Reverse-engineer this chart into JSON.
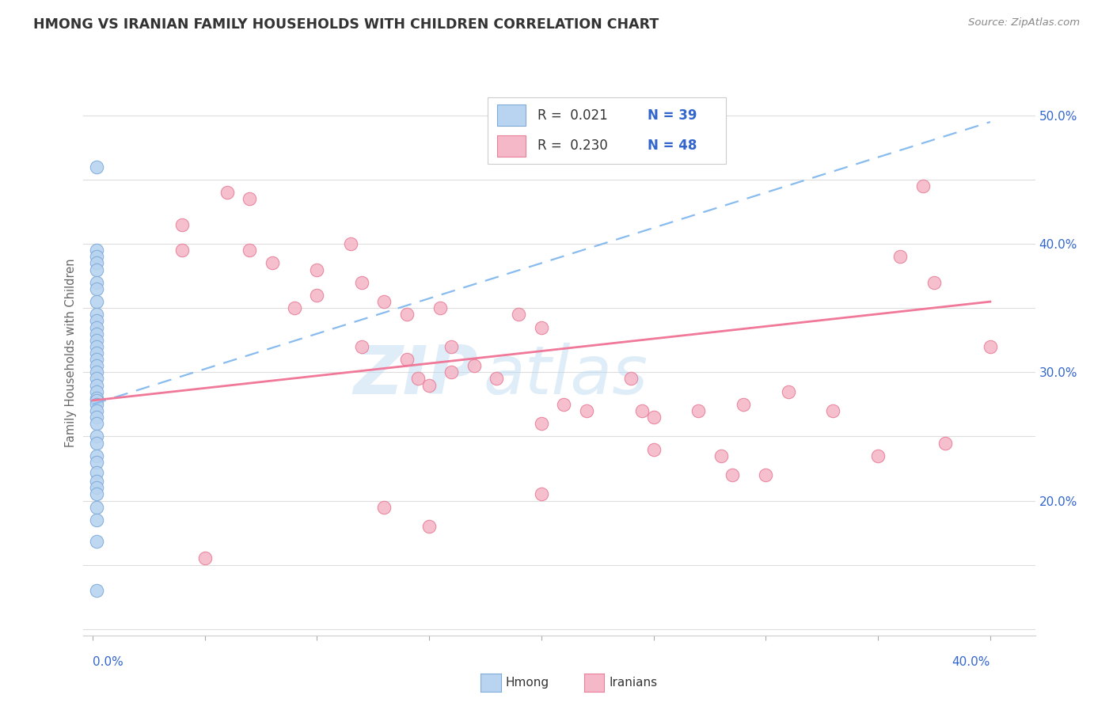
{
  "title": "HMONG VS IRANIAN FAMILY HOUSEHOLDS WITH CHILDREN CORRELATION CHART",
  "source": "Source: ZipAtlas.com",
  "ylabel": "Family Households with Children",
  "xlim": [
    -0.004,
    0.42
  ],
  "ylim": [
    0.095,
    0.535
  ],
  "background_color": "#ffffff",
  "grid_color": "#dddddd",
  "title_color": "#333333",
  "source_color": "#888888",
  "hmong_color": "#b8d4f0",
  "hmong_edge_color": "#80aad8",
  "iranian_color": "#f5b8c8",
  "iranian_edge_color": "#e8809a",
  "trend_hmong_color": "#88bbee",
  "trend_iranian_color": "#f07898",
  "legend_r_hmong": "0.021",
  "legend_n_hmong": "39",
  "legend_r_iranian": "0.230",
  "legend_n_iranian": "48",
  "legend_text_color": "#3366cc",
  "watermark_text": "ZIP",
  "watermark_text2": "atlas",
  "y_ticks": [
    0.1,
    0.15,
    0.2,
    0.25,
    0.3,
    0.35,
    0.4,
    0.45,
    0.5
  ],
  "y_tick_labels": [
    "",
    "",
    "20.0%",
    "",
    "30.0%",
    "",
    "40.0%",
    "",
    "50.0%"
  ],
  "x_bottom_ticks": [
    0.0,
    0.05,
    0.1,
    0.15,
    0.2,
    0.25,
    0.3,
    0.35,
    0.4
  ],
  "trend_hmong_x0": 0.0,
  "trend_hmong_y0": 0.275,
  "trend_hmong_x1": 0.4,
  "trend_hmong_y1": 0.495,
  "trend_iranian_x0": 0.0,
  "trend_iranian_y0": 0.278,
  "trend_iranian_x1": 0.4,
  "trend_iranian_y1": 0.355,
  "hmong_x": [
    0.002,
    0.002,
    0.002,
    0.002,
    0.002,
    0.002,
    0.002,
    0.002,
    0.002,
    0.002,
    0.002,
    0.002,
    0.002,
    0.002,
    0.002,
    0.002,
    0.002,
    0.002,
    0.002,
    0.002,
    0.002,
    0.002,
    0.002,
    0.002,
    0.002,
    0.002,
    0.002,
    0.002,
    0.002,
    0.002,
    0.002,
    0.002,
    0.002,
    0.002,
    0.002,
    0.002,
    0.002,
    0.002,
    0.002
  ],
  "hmong_y": [
    0.46,
    0.395,
    0.39,
    0.385,
    0.38,
    0.37,
    0.365,
    0.355,
    0.345,
    0.34,
    0.335,
    0.33,
    0.325,
    0.32,
    0.315,
    0.31,
    0.305,
    0.3,
    0.295,
    0.29,
    0.285,
    0.28,
    0.278,
    0.275,
    0.27,
    0.265,
    0.26,
    0.25,
    0.245,
    0.235,
    0.23,
    0.222,
    0.215,
    0.21,
    0.205,
    0.195,
    0.185,
    0.168,
    0.13
  ],
  "iranian_x": [
    0.04,
    0.04,
    0.06,
    0.07,
    0.07,
    0.08,
    0.09,
    0.1,
    0.1,
    0.115,
    0.12,
    0.12,
    0.13,
    0.14,
    0.14,
    0.145,
    0.15,
    0.155,
    0.16,
    0.16,
    0.17,
    0.18,
    0.19,
    0.2,
    0.2,
    0.21,
    0.22,
    0.24,
    0.245,
    0.25,
    0.27,
    0.28,
    0.285,
    0.29,
    0.3,
    0.31,
    0.33,
    0.35,
    0.36,
    0.37,
    0.375,
    0.38,
    0.4,
    0.13,
    0.15,
    0.2,
    0.25,
    0.05
  ],
  "iranian_y": [
    0.415,
    0.395,
    0.44,
    0.435,
    0.395,
    0.385,
    0.35,
    0.38,
    0.36,
    0.4,
    0.37,
    0.32,
    0.355,
    0.345,
    0.31,
    0.295,
    0.29,
    0.35,
    0.32,
    0.3,
    0.305,
    0.295,
    0.345,
    0.335,
    0.26,
    0.275,
    0.27,
    0.295,
    0.27,
    0.265,
    0.27,
    0.235,
    0.22,
    0.275,
    0.22,
    0.285,
    0.27,
    0.235,
    0.39,
    0.445,
    0.37,
    0.245,
    0.32,
    0.195,
    0.18,
    0.205,
    0.24,
    0.155
  ]
}
